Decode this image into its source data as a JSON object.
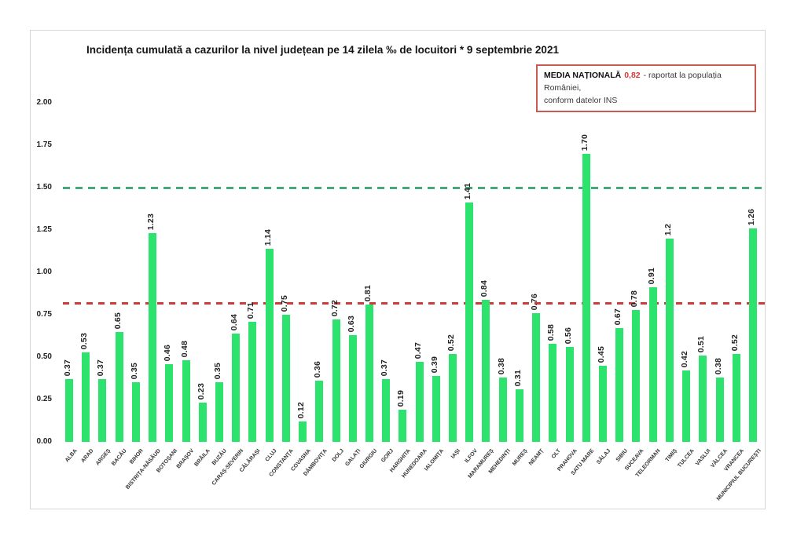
{
  "title": "Incidența cumulată a cazurilor la nivel județean pe 14 zilela ‰ de locuitori * 9 septembrie 2021",
  "legend": {
    "label": "MEDIA NAȚIONALĂ",
    "value": "0,82",
    "text_line1": "- raportat la populația României,",
    "text_line2": "conform datelor INS"
  },
  "colors": {
    "bar": "#2ce36e",
    "threshold_line": "#44a878",
    "average_line": "#cf3a3a",
    "legend_value": "#d43a3a",
    "legend_border": "#c75b54"
  },
  "chart_data": {
    "type": "bar",
    "title": "Incidența cumulată a cazurilor la nivel județean pe 14 zilela ‰ de locuitori * 9 septembrie 2021",
    "categories": [
      "ALBA",
      "ARAD",
      "ARGEȘ",
      "BACĂU",
      "BIHOR",
      "BISTRIȚA-NĂSĂUD",
      "BOTOȘANI",
      "BRAȘOV",
      "BRĂILA",
      "BUZĂU",
      "CARAȘ-SEVERIN",
      "CĂLĂRAȘI",
      "CLUJ",
      "CONSTANȚA",
      "COVASNA",
      "DÂMBOVIȚA",
      "DOLJ",
      "GALAȚI",
      "GIURGIU",
      "GORJ",
      "HARGHITA",
      "HUNEDOARA",
      "IALOMIȚA",
      "IAȘI",
      "ILFOV",
      "MARAMUREȘ",
      "MEHEDINȚI",
      "MUREȘ",
      "NEAMȚ",
      "OLT",
      "PRAHOVA",
      "SATU MARE",
      "SĂLAJ",
      "SIBIU",
      "SUCEAVA",
      "TELEORMAN",
      "TIMIȘ",
      "TULCEA",
      "VASLUI",
      "VÂLCEA",
      "VRANCEA",
      "MUNICIPIUL BUCUREȘTI"
    ],
    "values": [
      0.37,
      0.53,
      0.37,
      0.65,
      0.35,
      1.23,
      0.46,
      0.48,
      0.23,
      0.35,
      0.64,
      0.71,
      1.14,
      0.75,
      0.12,
      0.36,
      0.72,
      0.63,
      0.81,
      0.37,
      0.19,
      0.47,
      0.39,
      0.52,
      1.41,
      0.84,
      0.38,
      0.31,
      0.76,
      0.58,
      0.56,
      1.7,
      0.45,
      0.67,
      0.78,
      0.91,
      1.2,
      0.42,
      0.51,
      0.38,
      0.52,
      1.26
    ],
    "value_labels": [
      "0.37",
      "0.53",
      "0.37",
      "0.65",
      "0.35",
      "1.23",
      "0.46",
      "0.48",
      "0.23",
      "0.35",
      "0.64",
      "0.71",
      "1.14",
      "0.75",
      "0.12",
      "0.36",
      "0.72",
      "0.63",
      "0.81",
      "0.37",
      "0.19",
      "0.47",
      "0.39",
      "0.52",
      "1.41",
      "0.84",
      "0.38",
      "0.31",
      "0.76",
      "0.58",
      "0.56",
      "1.70",
      "0.45",
      "0.67",
      "0.78",
      "0.91",
      "1.2",
      "0.42",
      "0.51",
      "0.38",
      "0.52",
      "1.26"
    ],
    "yticks": [
      "2.00",
      "1.75",
      "1.50",
      "1.25",
      "1.00",
      "0.75",
      "0.50",
      "0.25",
      "0.00"
    ],
    "ylim": [
      0,
      2.0
    ],
    "grid": false,
    "legend_position": "top-right",
    "reference_lines": [
      {
        "value": 1.5,
        "style": "dashed",
        "color_role": "threshold_line"
      },
      {
        "value": 0.82,
        "style": "dashed",
        "color_role": "average_line"
      }
    ],
    "national_average": 0.82,
    "unit": "‰ de locuitori"
  }
}
